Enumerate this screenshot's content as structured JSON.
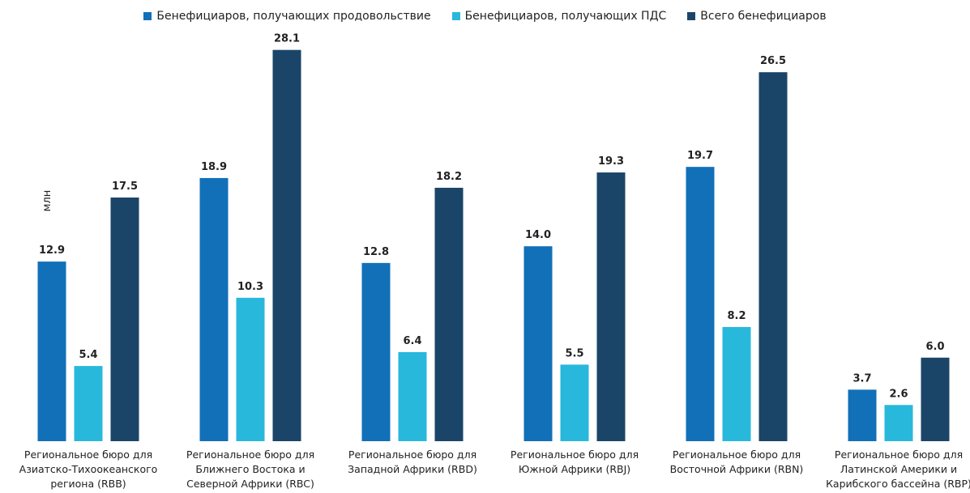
{
  "chart_data": {
    "type": "bar",
    "y_label": "млн",
    "categories": [
      "Региональное бюро для Азиатско-Тихоокеанского региона (RBB)",
      "Региональное бюро для Ближнего Востока и Северной Африки (RBC)",
      "Региональное бюро для Западной Африки (RBD)",
      "Региональное бюро для Южной Африки (RBJ)",
      "Региональное бюро для Восточной Африки (RBN)",
      "Региональное бюро для Латинской Америки и Карибского бассейна (RBP)"
    ],
    "series": [
      {
        "name": "Бенефициаров, получающих продовольствие",
        "color": "#1170b8",
        "values": [
          12.9,
          18.9,
          12.8,
          14.0,
          19.7,
          3.7
        ],
        "value_labels": [
          "12.9",
          "18.9",
          "12.8",
          "14.0",
          "19.7",
          "3.7"
        ]
      },
      {
        "name": "Бенефициаров, получающих ПДС",
        "color": "#28b8dc",
        "values": [
          5.4,
          10.3,
          6.4,
          5.5,
          8.2,
          2.6
        ],
        "value_labels": [
          "5.4",
          "10.3",
          "6.4",
          "5.5",
          "8.2",
          "2.6"
        ]
      },
      {
        "name": "Всего бенефициаров",
        "color": "#1a4568",
        "values": [
          17.5,
          28.1,
          18.2,
          19.3,
          26.5,
          6.0
        ],
        "value_labels": [
          "17.5",
          "28.1",
          "18.2",
          "19.3",
          "26.5",
          "6.0"
        ]
      }
    ],
    "ylim": [
      0,
      30
    ],
    "grid": false,
    "legend": "top"
  }
}
